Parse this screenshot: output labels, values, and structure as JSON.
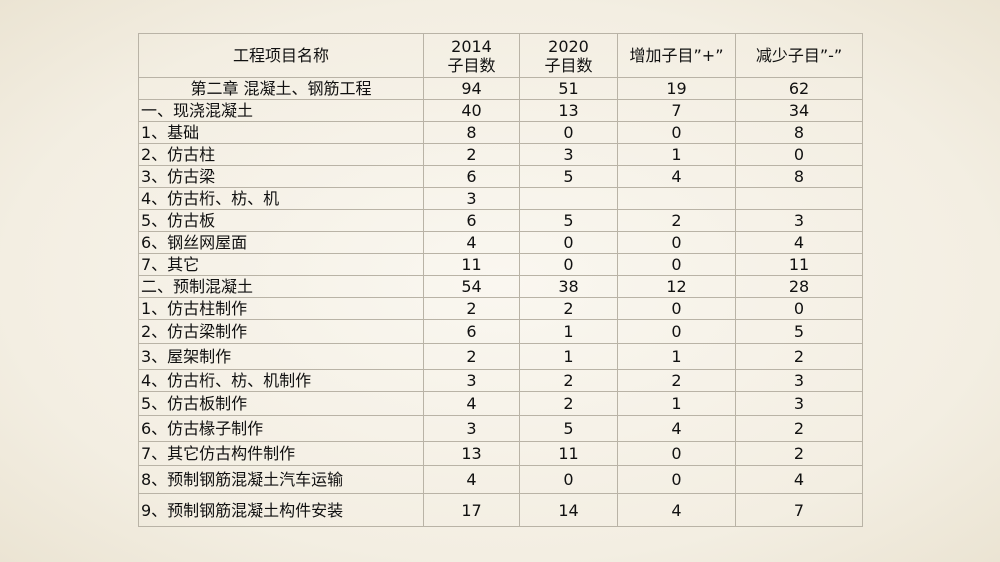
{
  "table": {
    "header": [
      [
        "工程项目名称"
      ],
      [
        "2014",
        "子目数"
      ],
      [
        "2020",
        "子目数"
      ],
      [
        "增加子目”+”"
      ],
      [
        "减少子目”-”"
      ]
    ],
    "rows": [
      [
        "第二章 混凝土、钢筋工程",
        "94",
        "51",
        "19",
        "62"
      ],
      [
        "一、现浇混凝土",
        "40",
        "13",
        "7",
        "34"
      ],
      [
        "1、基础",
        "8",
        "0",
        "0",
        "8"
      ],
      [
        "2、仿古柱",
        "2",
        "3",
        "1",
        "0"
      ],
      [
        "3、仿古梁",
        "6",
        "5",
        "4",
        "8"
      ],
      [
        "4、仿古桁、枋、机",
        "3",
        null,
        null,
        null
      ],
      [
        "5、仿古板",
        "6",
        "5",
        "2",
        "3"
      ],
      [
        "6、钢丝网屋面",
        "4",
        "0",
        "0",
        "4"
      ],
      [
        "7、其它",
        "11",
        "0",
        "0",
        "11"
      ],
      [
        "二、预制混凝土",
        "54",
        "38",
        "12",
        "28"
      ],
      [
        "1、仿古柱制作",
        "2",
        "2",
        "0",
        "0"
      ],
      [
        "2、仿古梁制作",
        "6",
        "1",
        "0",
        "5"
      ],
      [
        "3、屋架制作",
        "2",
        "1",
        "1",
        "2"
      ],
      [
        "4、仿古桁、枋、机制作",
        "3",
        "2",
        "2",
        "3"
      ],
      [
        "5、仿古板制作",
        "4",
        "2",
        "1",
        "3"
      ],
      [
        "6、仿古椽子制作",
        "3",
        "5",
        "4",
        "2"
      ],
      [
        "7、其它仿古构件制作",
        "13",
        "11",
        "0",
        "2"
      ],
      [
        "8、预制钢筋混凝土汽车运输",
        "4",
        "0",
        "0",
        "4"
      ],
      [
        "9、预制钢筋混凝土构件安装",
        "17",
        "14",
        "4",
        "7"
      ]
    ]
  }
}
